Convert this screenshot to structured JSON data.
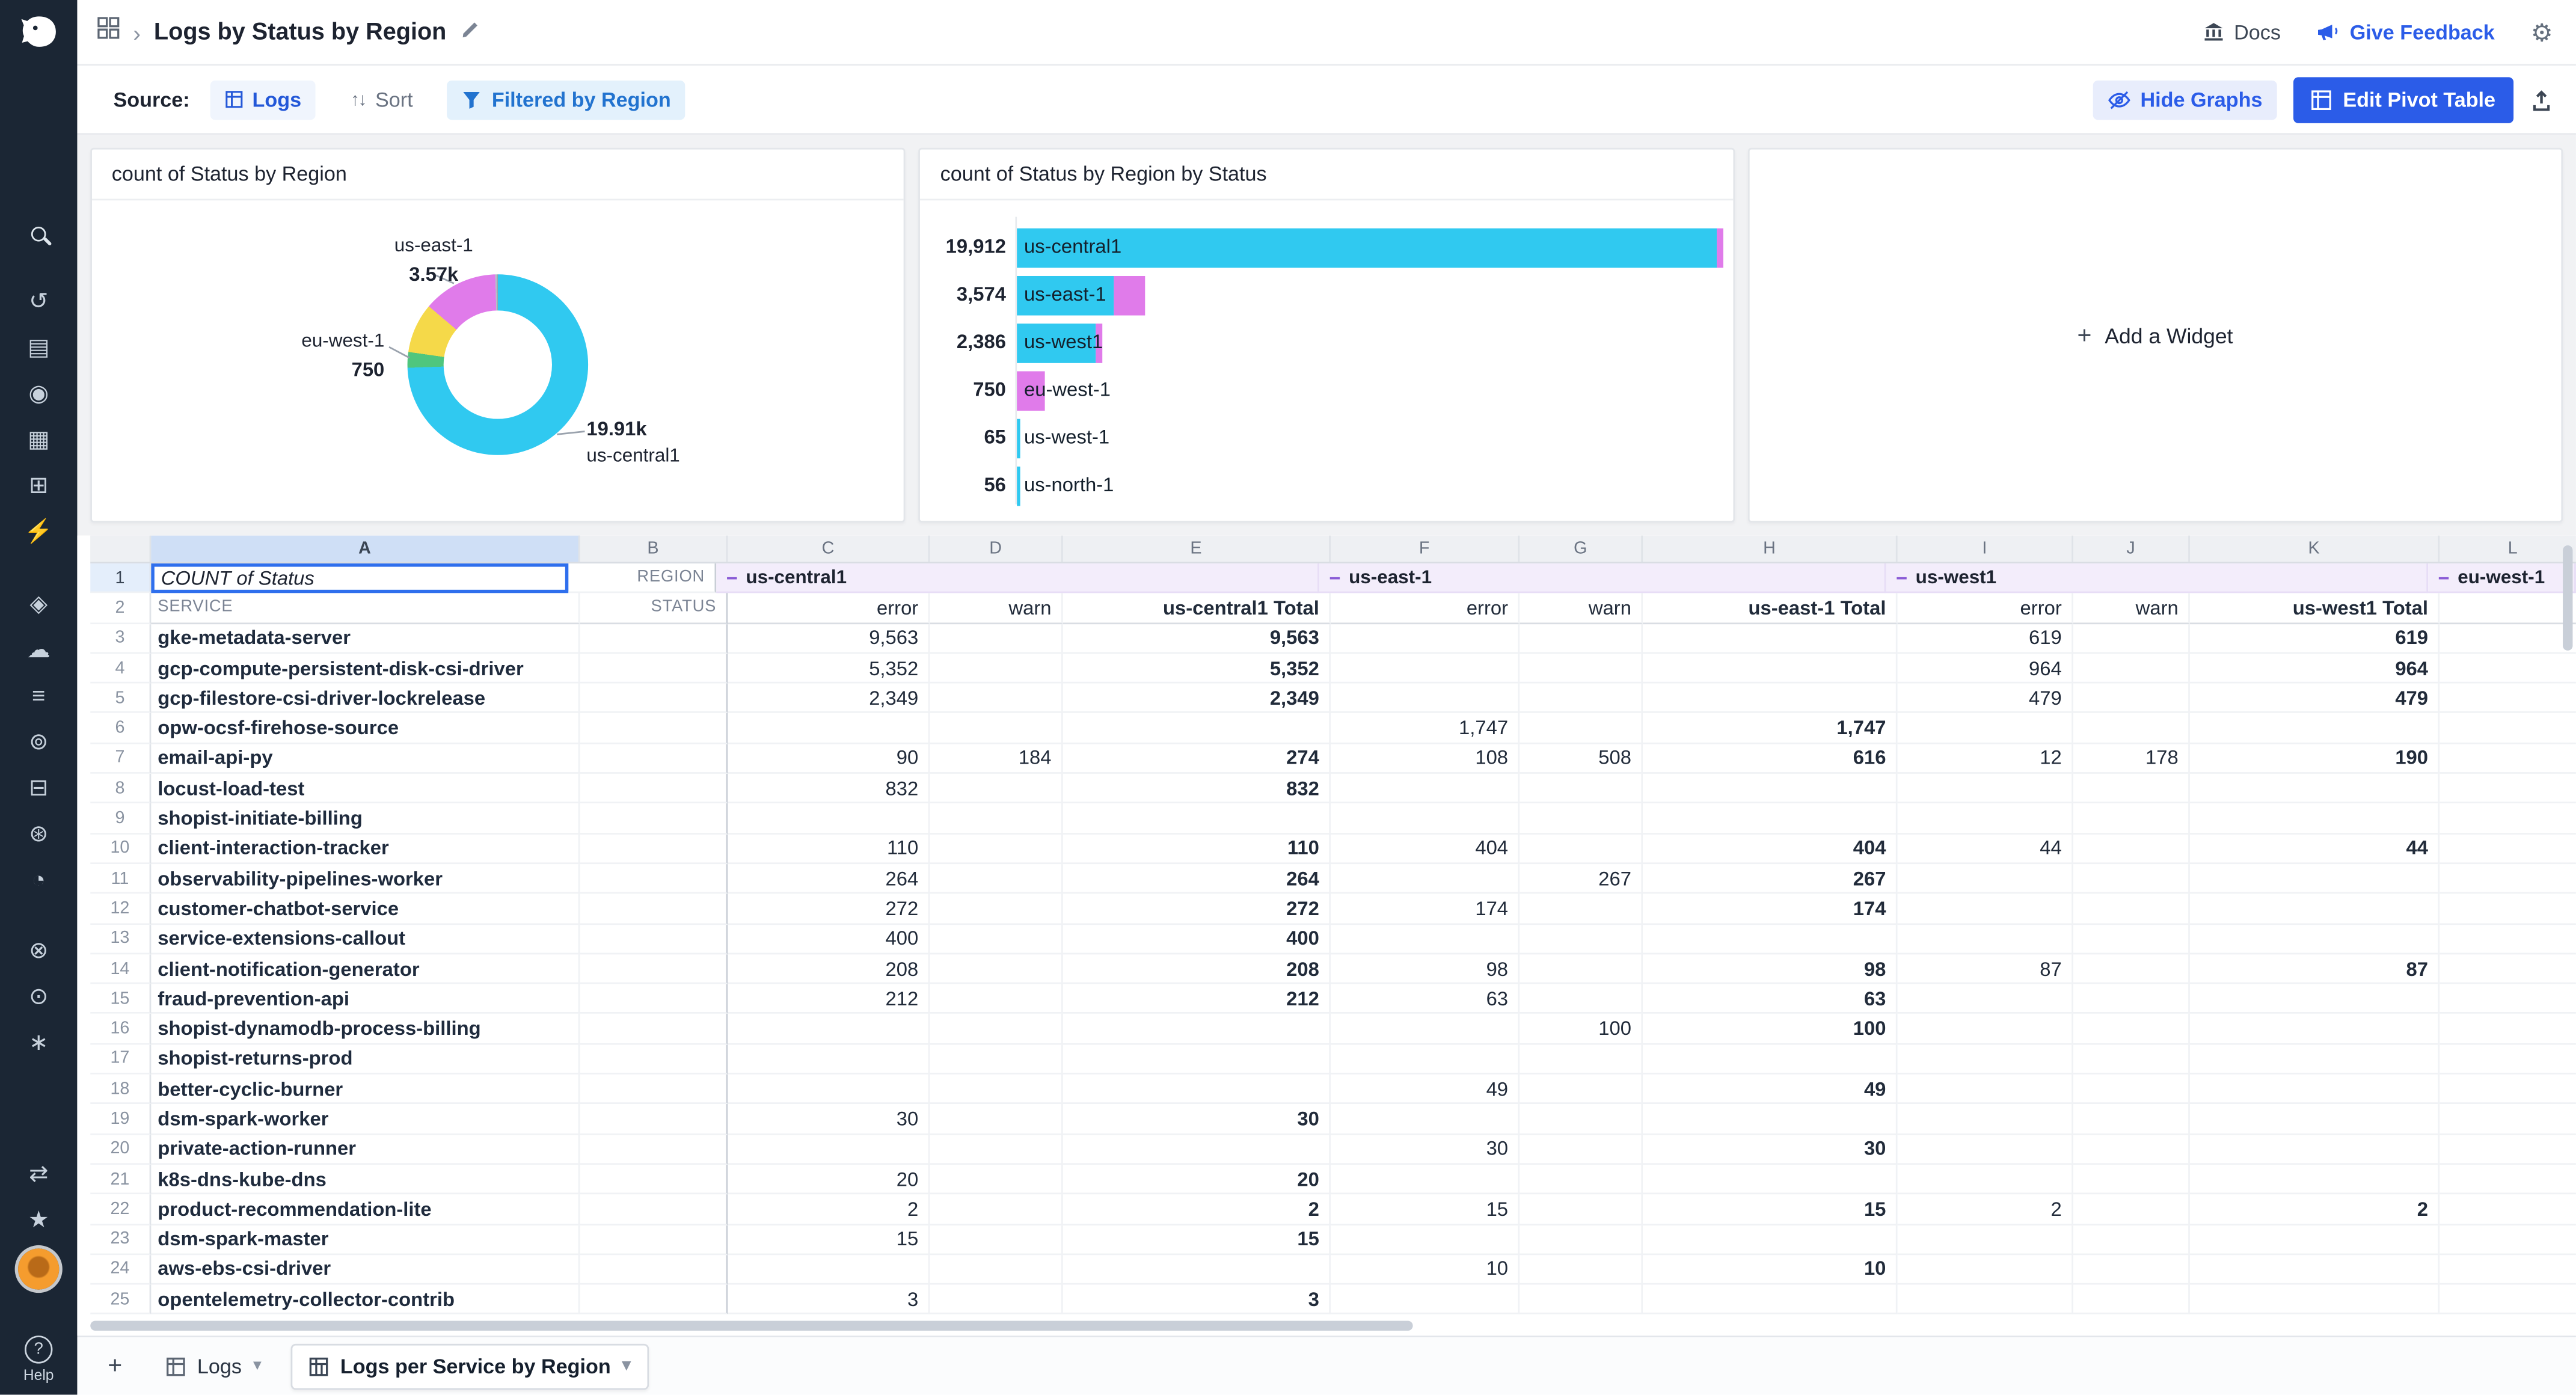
{
  "colors": {
    "accent_blue": "#2b5ce8",
    "cyan": "#30c9f0",
    "pink": "#e07bea",
    "yellow": "#f5d949",
    "green": "#4fc67e",
    "lavender_header": "#f3edfb",
    "sidebar_bg": "#1b2634"
  },
  "icons": {
    "gear_glyph": "⚙",
    "sort_glyph": "↑↓",
    "chevron_down_glyph": "▾",
    "breadcrumb_sep_glyph": "›",
    "plus_glyph": "+",
    "help_glyph": "?",
    "minus_glyph": "−"
  },
  "header": {
    "title": "Logs by Status by Region",
    "docs": "Docs",
    "give_feedback": "Give Feedback"
  },
  "toolbar": {
    "source_label": "Source:",
    "logs_chip": "Logs",
    "sort": "Sort",
    "filter_chip": "Filtered by Region",
    "hide_graphs": "Hide Graphs",
    "edit_pivot_table": "Edit Pivot Table"
  },
  "widgets": {
    "donut_title": "count of Status by Region",
    "bar_title": "count of Status by Region by Status",
    "add_widget": "Add a Widget",
    "donut_callouts": {
      "top_label": "us-east-1",
      "top_value": "3.57k",
      "left_label": "eu-west-1",
      "left_value": "750",
      "bottom_value": "19.91k",
      "bottom_label": "us-central1"
    }
  },
  "chart_data": [
    {
      "type": "pie",
      "donut": true,
      "title": "count of Status by Region",
      "categories": [
        "us-central1",
        "us-east-1",
        "us-west1",
        "eu-west-1",
        "us-west-1",
        "us-north-1"
      ],
      "values": [
        19912,
        3574,
        2386,
        750,
        65,
        56
      ],
      "colors": [
        "#30c9f0",
        "#e07bea",
        "#f5d949",
        "#4fc67e",
        "#b8c2cc",
        "#9aa5b1"
      ],
      "visible_labels": {
        "us-east-1": "3.57k",
        "eu-west-1": "750",
        "us-central1": "19.91k"
      }
    },
    {
      "type": "bar",
      "orientation": "horizontal",
      "title": "count of Status by Region by Status",
      "categories": [
        "us-central1",
        "us-east-1",
        "us-west1",
        "eu-west-1",
        "us-west-1",
        "us-north-1"
      ],
      "value_labels": [
        "19,912",
        "3,574",
        "2,386",
        "750",
        "65",
        "56"
      ],
      "totals": [
        19912,
        3574,
        2386,
        750,
        65,
        56
      ],
      "series": [
        {
          "name": "error",
          "color": "#30c9f0",
          "values": [
            19728,
            2699,
            2208,
            0,
            65,
            56
          ]
        },
        {
          "name": "warn",
          "color": "#e07bea",
          "values": [
            184,
            875,
            178,
            750,
            0,
            0
          ]
        }
      ],
      "xlim": [
        0,
        19912
      ],
      "legend": "none"
    }
  ],
  "sheet": {
    "columns": [
      "A",
      "B",
      "C",
      "D",
      "E",
      "F",
      "G",
      "H",
      "I",
      "J",
      "K",
      "L"
    ],
    "a1": "COUNT of Status",
    "b1": "REGION",
    "a2": "SERVICE",
    "b2": "STATUS",
    "groups": [
      {
        "label": "us-central1"
      },
      {
        "label": "us-east-1"
      },
      {
        "label": "us-west1"
      },
      {
        "label": "eu-west-1"
      }
    ],
    "col_headers": [
      "error",
      "warn",
      "us-central1 Total",
      "error",
      "warn",
      "us-east-1 Total",
      "error",
      "warn",
      "us-west1 Total",
      ""
    ],
    "rows": [
      {
        "n": 3,
        "service": "gke-metadata-server",
        "cells": [
          "9,563",
          "",
          "9,563",
          "",
          "",
          "",
          "619",
          "",
          "619",
          ""
        ]
      },
      {
        "n": 4,
        "service": "gcp-compute-persistent-disk-csi-driver",
        "cells": [
          "5,352",
          "",
          "5,352",
          "",
          "",
          "",
          "964",
          "",
          "964",
          ""
        ]
      },
      {
        "n": 5,
        "service": "gcp-filestore-csi-driver-lockrelease",
        "cells": [
          "2,349",
          "",
          "2,349",
          "",
          "",
          "",
          "479",
          "",
          "479",
          ""
        ]
      },
      {
        "n": 6,
        "service": "opw-ocsf-firehose-source",
        "cells": [
          "",
          "",
          "",
          "1,747",
          "",
          "1,747",
          "",
          "",
          "",
          ""
        ]
      },
      {
        "n": 7,
        "service": "email-api-py",
        "cells": [
          "90",
          "184",
          "274",
          "108",
          "508",
          "616",
          "12",
          "178",
          "190",
          ""
        ]
      },
      {
        "n": 8,
        "service": "locust-load-test",
        "cells": [
          "832",
          "",
          "832",
          "",
          "",
          "",
          "",
          "",
          "",
          ""
        ]
      },
      {
        "n": 9,
        "service": "shopist-initiate-billing",
        "cells": [
          "",
          "",
          "",
          "",
          "",
          "",
          "",
          "",
          "",
          ""
        ]
      },
      {
        "n": 10,
        "service": "client-interaction-tracker",
        "cells": [
          "110",
          "",
          "110",
          "404",
          "",
          "404",
          "44",
          "",
          "44",
          ""
        ]
      },
      {
        "n": 11,
        "service": "observability-pipelines-worker",
        "cells": [
          "264",
          "",
          "264",
          "",
          "267",
          "267",
          "",
          "",
          "",
          ""
        ]
      },
      {
        "n": 12,
        "service": "customer-chatbot-service",
        "cells": [
          "272",
          "",
          "272",
          "174",
          "",
          "174",
          "",
          "",
          "",
          ""
        ]
      },
      {
        "n": 13,
        "service": "service-extensions-callout",
        "cells": [
          "400",
          "",
          "400",
          "",
          "",
          "",
          "",
          "",
          "",
          ""
        ]
      },
      {
        "n": 14,
        "service": "client-notification-generator",
        "cells": [
          "208",
          "",
          "208",
          "98",
          "",
          "98",
          "87",
          "",
          "87",
          ""
        ]
      },
      {
        "n": 15,
        "service": "fraud-prevention-api",
        "cells": [
          "212",
          "",
          "212",
          "63",
          "",
          "63",
          "",
          "",
          "",
          ""
        ]
      },
      {
        "n": 16,
        "service": "shopist-dynamodb-process-billing",
        "cells": [
          "",
          "",
          "",
          "",
          "100",
          "100",
          "",
          "",
          "",
          ""
        ]
      },
      {
        "n": 17,
        "service": "shopist-returns-prod",
        "cells": [
          "",
          "",
          "",
          "",
          "",
          "",
          "",
          "",
          "",
          ""
        ]
      },
      {
        "n": 18,
        "service": "better-cyclic-burner",
        "cells": [
          "",
          "",
          "",
          "49",
          "",
          "49",
          "",
          "",
          "",
          ""
        ]
      },
      {
        "n": 19,
        "service": "dsm-spark-worker",
        "cells": [
          "30",
          "",
          "30",
          "",
          "",
          "",
          "",
          "",
          "",
          ""
        ]
      },
      {
        "n": 20,
        "service": "private-action-runner",
        "cells": [
          "",
          "",
          "",
          "30",
          "",
          "30",
          "",
          "",
          "",
          ""
        ]
      },
      {
        "n": 21,
        "service": "k8s-dns-kube-dns",
        "cells": [
          "20",
          "",
          "20",
          "",
          "",
          "",
          "",
          "",
          "",
          ""
        ]
      },
      {
        "n": 22,
        "service": "product-recommendation-lite",
        "cells": [
          "2",
          "",
          "2",
          "15",
          "",
          "15",
          "2",
          "",
          "2",
          ""
        ]
      },
      {
        "n": 23,
        "service": "dsm-spark-master",
        "cells": [
          "15",
          "",
          "15",
          "",
          "",
          "",
          "",
          "",
          "",
          ""
        ]
      },
      {
        "n": 24,
        "service": "aws-ebs-csi-driver",
        "cells": [
          "",
          "",
          "",
          "10",
          "",
          "10",
          "",
          "",
          "",
          ""
        ]
      },
      {
        "n": 25,
        "service": "opentelemetry-collector-contrib",
        "cells": [
          "3",
          "",
          "3",
          "",
          "",
          "",
          "",
          "",
          "",
          ""
        ]
      }
    ]
  },
  "tabs": {
    "logs_tab": "Logs",
    "active_tab": "Logs per Service by Region"
  },
  "sidebar": {
    "help": "Help",
    "items": [
      {
        "name": "search-icon",
        "glyph": ""
      },
      {
        "name": "recents-icon",
        "glyph": "↺"
      },
      {
        "name": "dashboards-icon",
        "glyph": "▤"
      },
      {
        "name": "watchdog-icon",
        "glyph": "◉"
      },
      {
        "name": "notebooks-icon",
        "glyph": "▦"
      },
      {
        "name": "infrastructure-icon",
        "glyph": "⊞"
      },
      {
        "name": "actions-icon",
        "glyph": "⚡"
      },
      {
        "name": "service-management-icon",
        "glyph": "◈"
      },
      {
        "name": "digital-experience-icon",
        "glyph": "☁"
      },
      {
        "name": "pipelines-icon",
        "glyph": "≡"
      },
      {
        "name": "apm-icon",
        "glyph": "⊚"
      },
      {
        "name": "databases-icon",
        "glyph": "⊟"
      },
      {
        "name": "security-icon",
        "glyph": "⊛"
      },
      {
        "name": "metrics-icon",
        "glyph": "◔"
      },
      {
        "name": "error-tracking-icon",
        "glyph": "⊗"
      },
      {
        "name": "ci-cd-icon",
        "glyph": "⊙"
      },
      {
        "name": "llm-observability-icon",
        "glyph": "∗"
      },
      {
        "name": "workflows-icon",
        "glyph": "⇄"
      },
      {
        "name": "ai-assistant-icon",
        "glyph": "★"
      }
    ]
  }
}
